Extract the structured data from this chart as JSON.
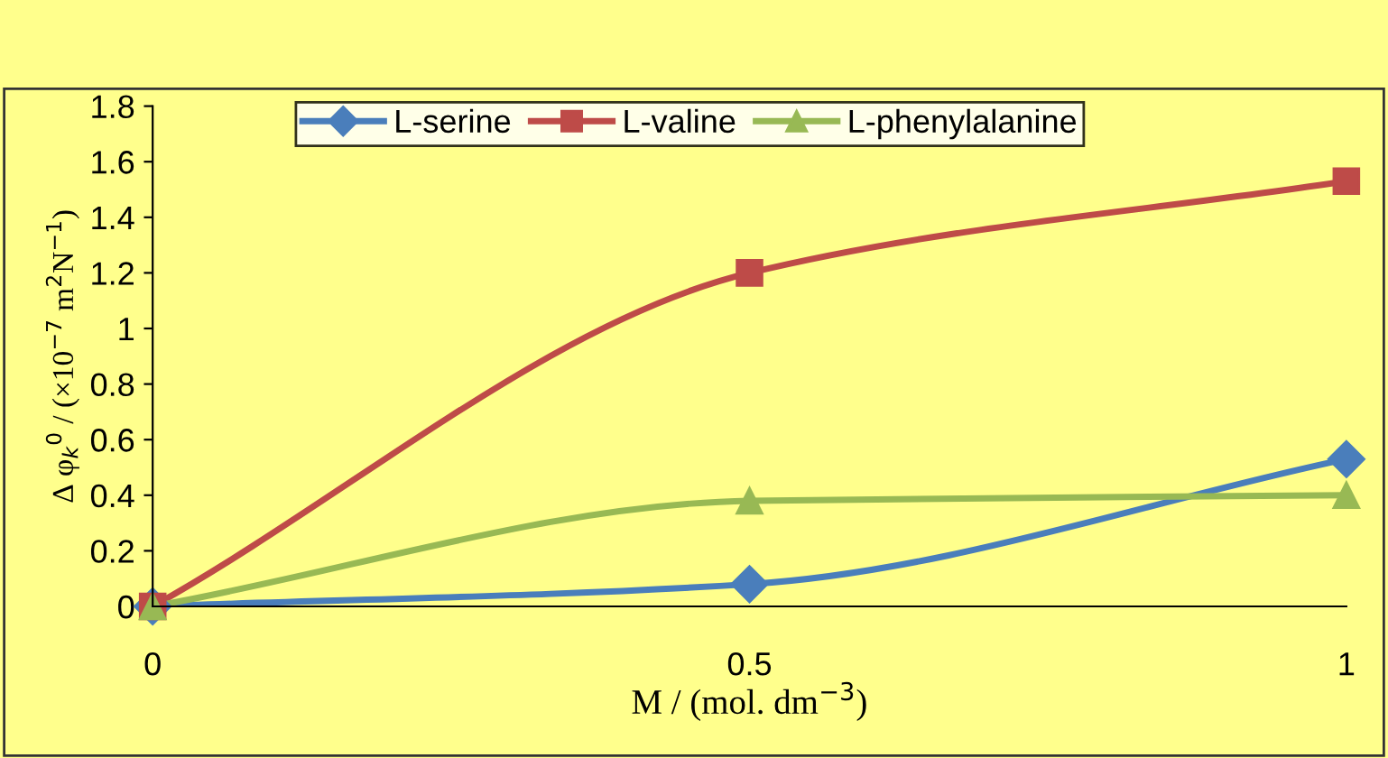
{
  "chart_data": {
    "type": "line",
    "xlabel": "M / (mol. dm$^{−3}$)",
    "ylabel": "Δ φ$_{k}$$^{0}$ / (×10$^{−7}$ m$^{2}$N$^{−1}$)",
    "x": [
      0,
      0.5,
      1
    ],
    "xlim": [
      0,
      1
    ],
    "xticks": [
      0,
      0.5,
      1
    ],
    "ylim": [
      0,
      1.8
    ],
    "yticks": [
      0,
      0.2,
      0.4,
      0.6,
      0.8,
      1,
      1.2,
      1.4,
      1.6,
      1.8
    ],
    "grid": false,
    "legend": "top",
    "line_style": "solid",
    "series": [
      {
        "name": "L-serine",
        "color": "#4a7ebb",
        "marker": "diamond",
        "values": [
          0,
          0.08,
          0.53
        ]
      },
      {
        "name": "L-valine",
        "color": "#be4b48",
        "marker": "square",
        "values": [
          0,
          1.2,
          1.53
        ]
      },
      {
        "name": "L-phenylalanine",
        "color": "#98b954",
        "marker": "triangle",
        "values": [
          0,
          0.38,
          0.4
        ]
      }
    ]
  }
}
